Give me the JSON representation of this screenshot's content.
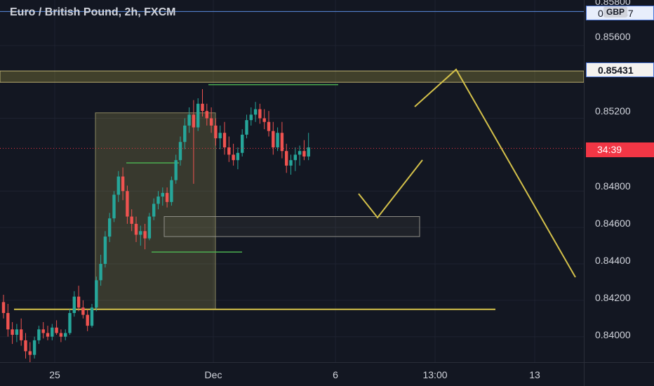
{
  "header": {
    "title": "Euro / British Pound, 2h, FXCM",
    "currency_badge": "GBP"
  },
  "price_scale": {
    "labels": [
      "0.85800",
      "0.85600",
      "0.85200",
      "0.84800",
      "0.84600",
      "0.84400",
      "0.84200",
      "0.84000"
    ],
    "hline_tag": "0.85787",
    "zone_tag": "0.85431",
    "countdown_tag": "34:39",
    "countdown_price": 0.85035
  },
  "time_scale": {
    "labels": [
      "25",
      "Dec",
      "6",
      "13:00",
      "13"
    ]
  },
  "colors": {
    "background": "#131722",
    "up": "#26a69a",
    "down": "#ef5350",
    "drawing": "#d4c14a",
    "hline": "#5b8de0",
    "green_line": "#4caf50"
  },
  "chart_data": {
    "type": "candlestick",
    "symbol": "Euro / British Pound",
    "timeframe": "2h",
    "source": "FXCM",
    "ylim": [
      0.8386,
      0.8585
    ],
    "candles": [
      [
        0.8419,
        0.8423,
        0.841,
        0.8413
      ],
      [
        0.8413,
        0.8418,
        0.84,
        0.8404
      ],
      [
        0.8404,
        0.8408,
        0.8396,
        0.8401
      ],
      [
        0.8401,
        0.8407,
        0.8397,
        0.8404
      ],
      [
        0.8404,
        0.841,
        0.8395,
        0.8398
      ],
      [
        0.8398,
        0.8402,
        0.8388,
        0.8392
      ],
      [
        0.8392,
        0.8397,
        0.8386,
        0.839
      ],
      [
        0.839,
        0.84,
        0.8388,
        0.8398
      ],
      [
        0.8398,
        0.8406,
        0.8396,
        0.8404
      ],
      [
        0.8404,
        0.8408,
        0.8399,
        0.8402
      ],
      [
        0.8402,
        0.8406,
        0.8398,
        0.84
      ],
      [
        0.84,
        0.8407,
        0.8398,
        0.8405
      ],
      [
        0.8405,
        0.8409,
        0.8401,
        0.8402
      ],
      [
        0.8402,
        0.8404,
        0.8397,
        0.84
      ],
      [
        0.84,
        0.8404,
        0.8398,
        0.8402
      ],
      [
        0.8402,
        0.8415,
        0.8401,
        0.8413
      ],
      [
        0.8413,
        0.8425,
        0.8411,
        0.8422
      ],
      [
        0.8422,
        0.8428,
        0.8414,
        0.8416
      ],
      [
        0.8416,
        0.842,
        0.841,
        0.8412
      ],
      [
        0.8412,
        0.8415,
        0.8403,
        0.8406
      ],
      [
        0.8406,
        0.8418,
        0.8405,
        0.8416
      ],
      [
        0.8416,
        0.8433,
        0.8414,
        0.8431
      ],
      [
        0.8431,
        0.8445,
        0.8428,
        0.844
      ],
      [
        0.844,
        0.8458,
        0.8438,
        0.8455
      ],
      [
        0.8455,
        0.8468,
        0.8452,
        0.8465
      ],
      [
        0.8465,
        0.848,
        0.8463,
        0.8478
      ],
      [
        0.8478,
        0.8491,
        0.8474,
        0.8488
      ],
      [
        0.8488,
        0.8493,
        0.8475,
        0.848
      ],
      [
        0.848,
        0.8483,
        0.8462,
        0.8466
      ],
      [
        0.8466,
        0.847,
        0.8458,
        0.8462
      ],
      [
        0.8462,
        0.8466,
        0.8452,
        0.8456
      ],
      [
        0.8456,
        0.8461,
        0.845,
        0.8458
      ],
      [
        0.8458,
        0.8462,
        0.8448,
        0.8454
      ],
      [
        0.8454,
        0.8468,
        0.8453,
        0.8466
      ],
      [
        0.8466,
        0.8476,
        0.8464,
        0.8473
      ],
      [
        0.8473,
        0.848,
        0.847,
        0.8477
      ],
      [
        0.8477,
        0.8482,
        0.8472,
        0.8479
      ],
      [
        0.8479,
        0.8482,
        0.8471,
        0.8474
      ],
      [
        0.8474,
        0.8488,
        0.8472,
        0.8486
      ],
      [
        0.8486,
        0.85,
        0.8484,
        0.8497
      ],
      [
        0.8497,
        0.851,
        0.8494,
        0.8507
      ],
      [
        0.8507,
        0.852,
        0.8503,
        0.8516
      ],
      [
        0.8516,
        0.8526,
        0.8512,
        0.8522
      ],
      [
        0.8522,
        0.853,
        0.8484,
        0.8515
      ],
      [
        0.8515,
        0.8531,
        0.8513,
        0.8528
      ],
      [
        0.8528,
        0.8536,
        0.8521,
        0.8524
      ],
      [
        0.8524,
        0.8528,
        0.8516,
        0.852
      ],
      [
        0.852,
        0.8526,
        0.8512,
        0.8516
      ],
      [
        0.8516,
        0.852,
        0.8505,
        0.8509
      ],
      [
        0.8509,
        0.8516,
        0.8503,
        0.8512
      ],
      [
        0.8512,
        0.8518,
        0.85,
        0.8504
      ],
      [
        0.8504,
        0.851,
        0.8496,
        0.85
      ],
      [
        0.85,
        0.8506,
        0.8494,
        0.8497
      ],
      [
        0.8497,
        0.8504,
        0.8492,
        0.8501
      ],
      [
        0.8501,
        0.8514,
        0.8499,
        0.8511
      ],
      [
        0.8511,
        0.8522,
        0.8509,
        0.8519
      ],
      [
        0.8519,
        0.8526,
        0.8516,
        0.8522
      ],
      [
        0.8522,
        0.8529,
        0.8518,
        0.8525
      ],
      [
        0.8525,
        0.8528,
        0.8517,
        0.852
      ],
      [
        0.852,
        0.8525,
        0.8514,
        0.8518
      ],
      [
        0.8518,
        0.8524,
        0.851,
        0.8513
      ],
      [
        0.8513,
        0.8518,
        0.85,
        0.8504
      ],
      [
        0.8504,
        0.8515,
        0.8502,
        0.8512
      ],
      [
        0.8512,
        0.8518,
        0.8498,
        0.8502
      ],
      [
        0.8502,
        0.8506,
        0.849,
        0.8494
      ],
      [
        0.8494,
        0.85,
        0.8489,
        0.8497
      ],
      [
        0.8497,
        0.8504,
        0.8491,
        0.85
      ],
      [
        0.85,
        0.8505,
        0.8494,
        0.8502
      ],
      [
        0.8502,
        0.8508,
        0.8497,
        0.8499
      ],
      [
        0.8499,
        0.8512,
        0.8497,
        0.8504
      ]
    ],
    "drawings": {
      "resistance_zone": [
        0.85398,
        0.8546
      ],
      "hline_price": 0.85787,
      "support_line": 0.8415,
      "demand_zone": [
        0.8455,
        0.8466
      ],
      "rect_zone": [
        0.8415,
        0.8523
      ],
      "high_marker": 0.85385,
      "mid_marker": 0.84955,
      "low_marker": 0.84465
    }
  }
}
